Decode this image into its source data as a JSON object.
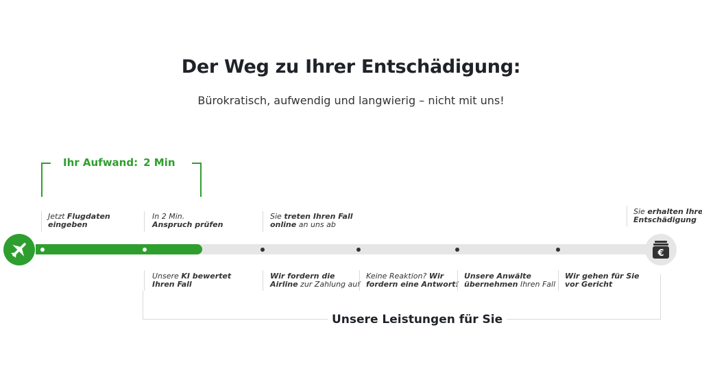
{
  "header": {
    "title": "Der Weg zu Ihrer Entschädigung:",
    "subtitle": "Bürokratisch, aufwendig und langwierig – nicht mit uns!"
  },
  "effort": {
    "label": "Ihr Aufwand:",
    "value": "2 Min"
  },
  "timeline": {
    "progress_fraction": 0.27,
    "accent_color": "#2e9e2e",
    "track_color": "#e6e6e6",
    "start_icon": "airplane-icon",
    "end_icon": "wallet-euro-icon",
    "end_icon_symbol": "€",
    "steps_top": [
      {
        "light": "Jetzt ",
        "bold": "Flugdaten",
        "line2_light": "",
        "line2_bold": "eingeben",
        "line2_tail": ""
      },
      {
        "light": "In 2 Min.",
        "bold": "",
        "line2_light": "",
        "line2_bold": "Anspruch prüfen",
        "line2_tail": ""
      },
      {
        "light": "Sie ",
        "bold": "treten Ihren Fall",
        "line2_light": "",
        "line2_bold": "online",
        "line2_tail": " an uns ab"
      },
      {
        "light": "Sie ",
        "bold": "erhalten Ihre",
        "line2_light": "",
        "line2_bold": "Entschädigung",
        "line2_tail": ""
      }
    ],
    "steps_bottom": [
      {
        "light": "Unsere ",
        "bold": "KI bewertet",
        "line2_light": "",
        "line2_bold": "Ihren Fall",
        "line2_tail": ""
      },
      {
        "light": "",
        "bold": "Wir fordern die",
        "line2_light": "",
        "line2_bold": "Airline",
        "line2_tail": " zur Zahlung auf"
      },
      {
        "light": "Keine Reaktion? ",
        "bold": "Wir",
        "line2_light": "",
        "line2_bold": "fordern eine Antwort!",
        "line2_tail": ""
      },
      {
        "light": "",
        "bold": "Unsere Anwälte",
        "line2_light": "",
        "line2_bold": "übernehmen",
        "line2_tail": " Ihren Fall"
      },
      {
        "light": "",
        "bold": "Wir gehen für Sie",
        "line2_light": "",
        "line2_bold": "vor Gericht",
        "line2_tail": ""
      }
    ]
  },
  "services": {
    "label": "Unsere Leistungen für Sie"
  }
}
